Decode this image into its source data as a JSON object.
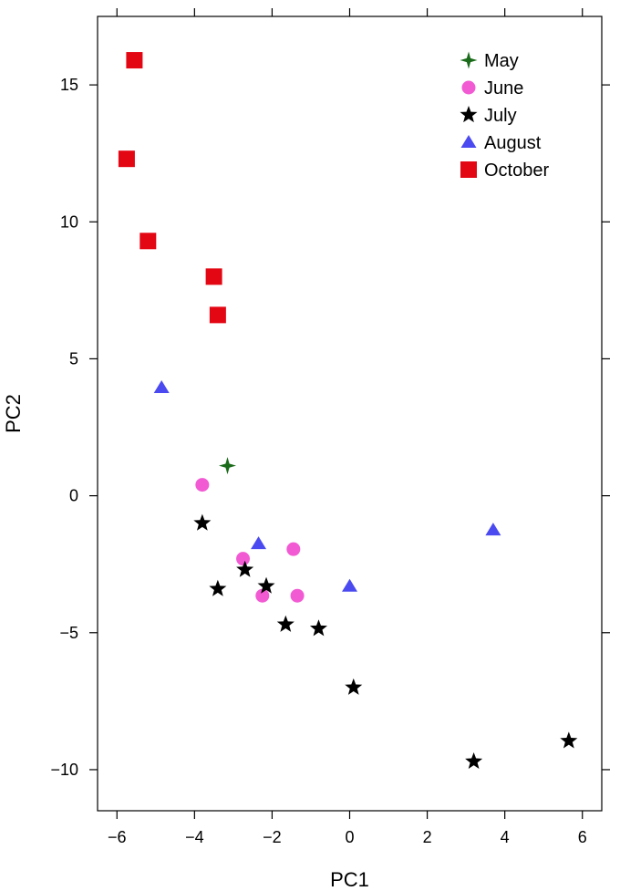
{
  "chart_data": {
    "type": "scatter",
    "xlabel": "PC1",
    "ylabel": "PC2",
    "xlim": [
      -6.5,
      6.5
    ],
    "ylim": [
      -11.5,
      17.5
    ],
    "x_ticks": [
      -6,
      -4,
      -2,
      0,
      2,
      4,
      6
    ],
    "x_tick_labels": [
      "−6",
      "−4",
      "−2",
      "0",
      "2",
      "4",
      "6"
    ],
    "y_ticks": [
      -10,
      -5,
      0,
      5,
      10,
      15
    ],
    "y_tick_labels": [
      "−10",
      "−5",
      "0",
      "5",
      "10",
      "15"
    ],
    "grid": false,
    "legend_position": "top-right",
    "series": [
      {
        "name": "May",
        "marker": "star4",
        "color": "#1a6b1a",
        "points": [
          [
            -3.15,
            1.1
          ]
        ]
      },
      {
        "name": "June",
        "marker": "circle",
        "color": "#f25ad3",
        "points": [
          [
            -3.8,
            0.4
          ],
          [
            -2.75,
            -2.3
          ],
          [
            -2.25,
            -3.65
          ],
          [
            -1.45,
            -1.95
          ],
          [
            -1.35,
            -3.65
          ]
        ]
      },
      {
        "name": "July",
        "marker": "star5",
        "color": "#000000",
        "points": [
          [
            -3.8,
            -1.0
          ],
          [
            -3.4,
            -3.4
          ],
          [
            -2.7,
            -2.7
          ],
          [
            -2.15,
            -3.3
          ],
          [
            -1.65,
            -4.7
          ],
          [
            -0.8,
            -4.85
          ],
          [
            0.1,
            -7.0
          ],
          [
            3.2,
            -9.7
          ],
          [
            5.65,
            -8.95
          ]
        ]
      },
      {
        "name": "August",
        "marker": "triangle",
        "color": "#4a4af0",
        "points": [
          [
            -4.85,
            3.95
          ],
          [
            -2.35,
            -1.75
          ],
          [
            0.0,
            -3.3
          ],
          [
            3.7,
            -1.25
          ]
        ]
      },
      {
        "name": "October",
        "marker": "square",
        "color": "#e30613",
        "points": [
          [
            -5.55,
            15.9
          ],
          [
            -5.75,
            12.3
          ],
          [
            -5.2,
            9.3
          ],
          [
            -3.5,
            8.0
          ],
          [
            -3.4,
            6.6
          ]
        ]
      }
    ]
  }
}
